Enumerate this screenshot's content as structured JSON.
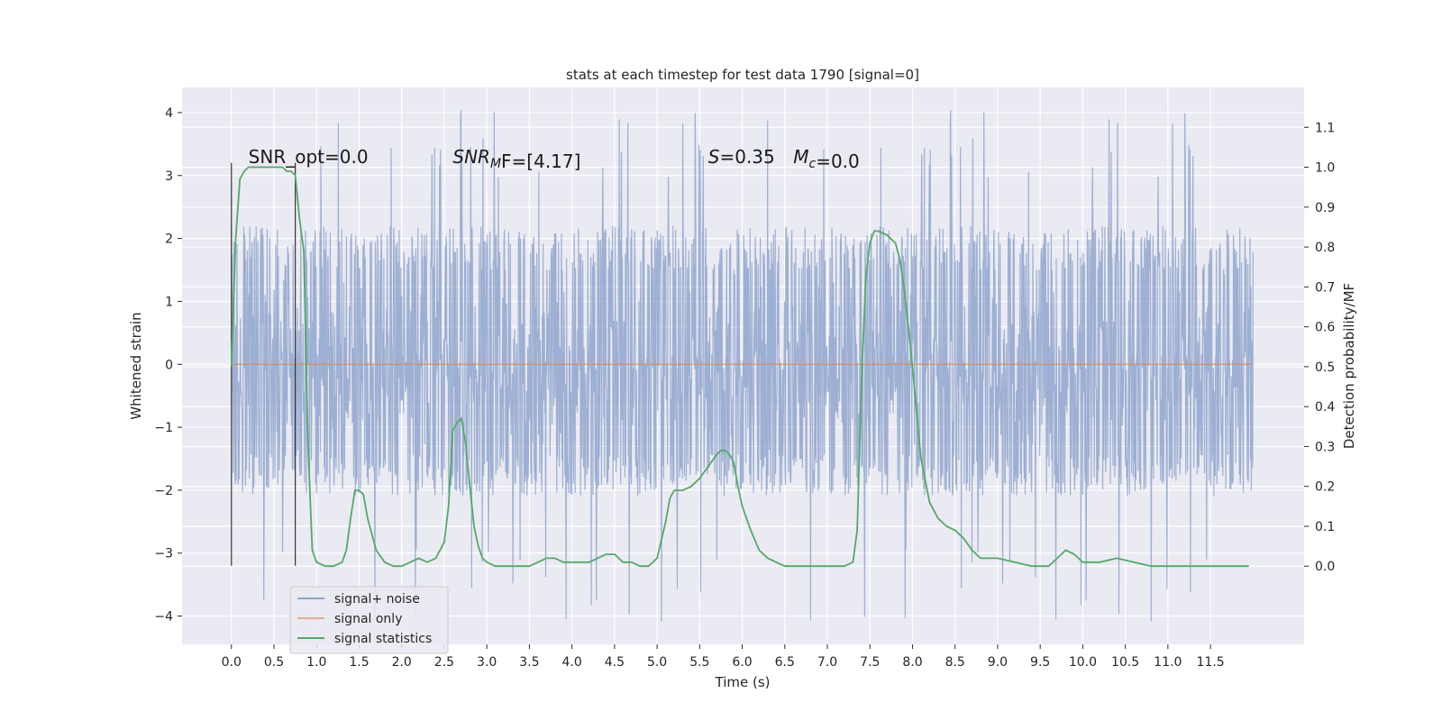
{
  "chart_data": {
    "type": "line",
    "title": "stats at each timestep for test data 1790 [signal=0]",
    "xlabel": "Time (s)",
    "ylabel": "Whitened strain",
    "y2label": "Detection probability/MF",
    "xlim": [
      -0.58,
      12.6
    ],
    "ylim": [
      -4.45,
      4.4
    ],
    "y2lim": [
      -0.196,
      1.2
    ],
    "xticks": [
      0.0,
      0.5,
      1.0,
      1.5,
      2.0,
      2.5,
      3.0,
      3.5,
      4.0,
      4.5,
      5.0,
      5.5,
      6.0,
      6.5,
      7.0,
      7.5,
      8.0,
      8.5,
      9.0,
      9.5,
      10.0,
      10.5,
      11.0,
      11.5
    ],
    "xtick_labels": [
      "0.0",
      "0.5",
      "1.0",
      "1.5",
      "2.0",
      "2.5",
      "3.0",
      "3.5",
      "4.0",
      "4.5",
      "5.0",
      "5.5",
      "6.0",
      "6.5",
      "7.0",
      "7.5",
      "8.0",
      "8.5",
      "9.0",
      "9.5",
      "10.0",
      "10.5",
      "11.0",
      "11.5"
    ],
    "yticks": [
      -4,
      -3,
      -2,
      -1,
      0,
      1,
      2,
      3,
      4
    ],
    "ytick_labels": [
      "−4",
      "−3",
      "−2",
      "−1",
      "0",
      "1",
      "2",
      "3",
      "4"
    ],
    "y2ticks": [
      0.0,
      0.1,
      0.2,
      0.3,
      0.4,
      0.5,
      0.6,
      0.7,
      0.8,
      0.9,
      1.0,
      1.1
    ],
    "y2tick_labels": [
      "0.0",
      "0.1",
      "0.2",
      "0.3",
      "0.4",
      "0.5",
      "0.6",
      "0.7",
      "0.8",
      "0.9",
      "1.0",
      "1.1"
    ],
    "grid": true,
    "legend_position": "lower-left",
    "colors": {
      "background": "#eaeaf2",
      "grid": "#ffffff",
      "noise": "#8fa4cc",
      "signal_only": "#dd8452",
      "statistics": "#55a868"
    },
    "series": [
      {
        "name": "signal+ noise",
        "axis": "left",
        "x_range": [
          0.0,
          12.0
        ],
        "typical_envelope": [
          -1.9,
          2.0
        ],
        "extremes": [
          -4.1,
          4.05
        ]
      },
      {
        "name": "signal only",
        "axis": "left",
        "x": [
          0.0,
          12.0
        ],
        "y": [
          0.0,
          0.0
        ]
      },
      {
        "name": "signal statistics",
        "axis": "right",
        "x": [
          0.0,
          0.05,
          0.1,
          0.15,
          0.2,
          0.3,
          0.4,
          0.5,
          0.6,
          0.65,
          0.7,
          0.75,
          0.8,
          0.85,
          0.9,
          0.95,
          1.0,
          1.1,
          1.2,
          1.3,
          1.35,
          1.4,
          1.45,
          1.5,
          1.55,
          1.6,
          1.7,
          1.8,
          1.9,
          2.0,
          2.1,
          2.2,
          2.3,
          2.4,
          2.5,
          2.55,
          2.6,
          2.65,
          2.7,
          2.75,
          2.8,
          2.85,
          2.9,
          2.95,
          3.0,
          3.1,
          3.2,
          3.3,
          3.4,
          3.5,
          3.6,
          3.7,
          3.8,
          3.9,
          4.0,
          4.1,
          4.2,
          4.3,
          4.4,
          4.5,
          4.6,
          4.7,
          4.8,
          4.9,
          5.0,
          5.1,
          5.15,
          5.2,
          5.25,
          5.3,
          5.4,
          5.5,
          5.6,
          5.7,
          5.75,
          5.8,
          5.85,
          5.9,
          5.95,
          6.0,
          6.1,
          6.2,
          6.3,
          6.4,
          6.5,
          6.7,
          6.9,
          7.1,
          7.2,
          7.3,
          7.35,
          7.4,
          7.45,
          7.5,
          7.55,
          7.6,
          7.7,
          7.8,
          7.85,
          7.9,
          7.95,
          8.0,
          8.05,
          8.1,
          8.2,
          8.3,
          8.4,
          8.5,
          8.6,
          8.7,
          8.8,
          8.9,
          9.0,
          9.2,
          9.4,
          9.6,
          9.7,
          9.8,
          9.9,
          10.0,
          10.2,
          10.4,
          10.6,
          10.8,
          11.0,
          11.2,
          11.5,
          11.8,
          11.95
        ],
        "y": [
          0.5,
          0.82,
          0.97,
          0.99,
          1.0,
          1.0,
          1.0,
          1.0,
          1.0,
          0.99,
          0.99,
          0.98,
          0.87,
          0.79,
          0.3,
          0.04,
          0.01,
          0.0,
          0.0,
          0.01,
          0.04,
          0.12,
          0.19,
          0.19,
          0.18,
          0.12,
          0.04,
          0.01,
          0.0,
          0.0,
          0.01,
          0.02,
          0.01,
          0.02,
          0.06,
          0.15,
          0.34,
          0.36,
          0.37,
          0.31,
          0.2,
          0.1,
          0.05,
          0.02,
          0.01,
          0.0,
          0.0,
          0.0,
          0.0,
          0.0,
          0.01,
          0.02,
          0.02,
          0.01,
          0.01,
          0.01,
          0.01,
          0.02,
          0.03,
          0.03,
          0.01,
          0.01,
          0.0,
          0.0,
          0.02,
          0.11,
          0.17,
          0.19,
          0.19,
          0.19,
          0.2,
          0.22,
          0.25,
          0.28,
          0.29,
          0.29,
          0.28,
          0.26,
          0.2,
          0.15,
          0.09,
          0.04,
          0.02,
          0.01,
          0.0,
          0.0,
          0.0,
          0.0,
          0.0,
          0.01,
          0.09,
          0.45,
          0.72,
          0.81,
          0.84,
          0.84,
          0.83,
          0.81,
          0.77,
          0.7,
          0.6,
          0.5,
          0.38,
          0.27,
          0.16,
          0.12,
          0.1,
          0.09,
          0.07,
          0.04,
          0.02,
          0.02,
          0.02,
          0.01,
          0.0,
          0.0,
          0.02,
          0.04,
          0.03,
          0.01,
          0.01,
          0.02,
          0.01,
          0.0,
          0.0,
          0.0,
          0.0,
          0.0,
          0.0
        ]
      }
    ],
    "annotations": [
      {
        "text": "SNR_opt=0.0",
        "x": 0.2,
        "y": 3.2
      },
      {
        "text": "SNR_MF=[4.17]",
        "x": 2.6,
        "y": 3.2
      },
      {
        "text": "S=0.35",
        "x": 5.6,
        "y": 3.2
      },
      {
        "text": "M_c=0.0",
        "x": 6.6,
        "y": 3.2
      }
    ],
    "vertical_markers": [
      0.0,
      0.75
    ]
  }
}
